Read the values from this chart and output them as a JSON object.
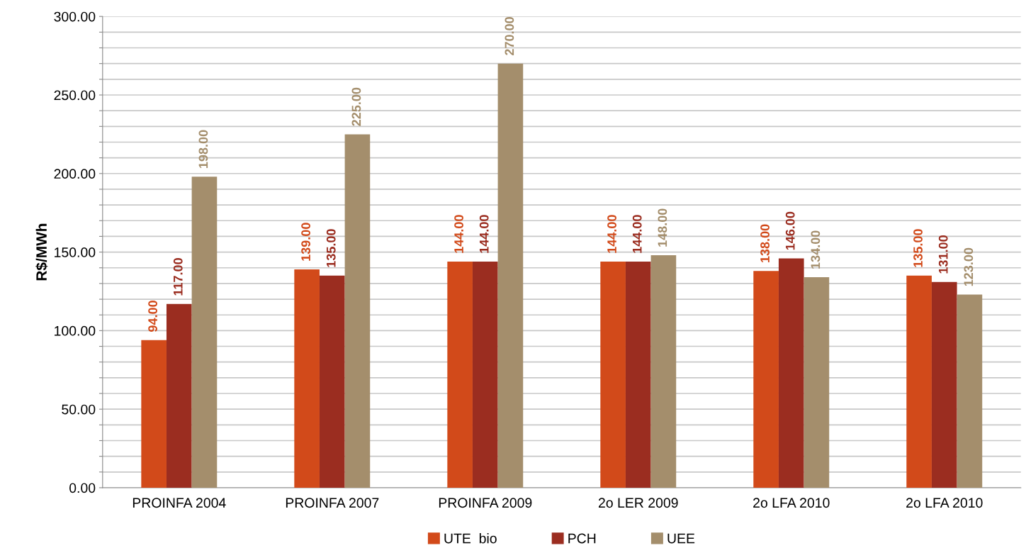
{
  "chart_data": {
    "type": "bar",
    "ylabel": "R$/MWh",
    "categories": [
      "PROINFA 2004",
      "PROINFA 2007",
      "PROINFA 2009",
      "2o LER 2009",
      "2o LFA 2010",
      "2o LFA 2010"
    ],
    "series": [
      {
        "name": "UTE  bio",
        "color": "#d24a1a",
        "values": [
          94,
          139,
          144,
          144,
          138,
          135
        ],
        "value_labels": [
          "94.00",
          "139.00",
          "144.00",
          "144.00",
          "138.00",
          "135.00"
        ]
      },
      {
        "name": "PCH",
        "color": "#9b2d20",
        "values": [
          117,
          135,
          144,
          144,
          146,
          131
        ],
        "value_labels": [
          "117.00",
          "135.00",
          "144.00",
          "144.00",
          "146.00",
          "131.00"
        ]
      },
      {
        "name": "UEE",
        "color": "#a48e6c",
        "values": [
          198,
          225,
          270,
          148,
          134,
          123
        ],
        "value_labels": [
          "198.00",
          "225.00",
          "270.00",
          "148.00",
          "134.00",
          "123.00"
        ]
      }
    ],
    "ylim": [
      0,
      300
    ],
    "yticks": [
      {
        "value": 0,
        "label": "0.00"
      },
      {
        "value": 10,
        "label": null
      },
      {
        "value": 20,
        "label": null
      },
      {
        "value": 30,
        "label": null
      },
      {
        "value": 40,
        "label": null
      },
      {
        "value": 50,
        "label": "50.00"
      },
      {
        "value": 60,
        "label": null
      },
      {
        "value": 70,
        "label": null
      },
      {
        "value": 80,
        "label": null
      },
      {
        "value": 90,
        "label": null
      },
      {
        "value": 100,
        "label": "100.00"
      },
      {
        "value": 110,
        "label": null
      },
      {
        "value": 120,
        "label": null
      },
      {
        "value": 130,
        "label": null
      },
      {
        "value": 140,
        "label": null
      },
      {
        "value": 150,
        "label": "150.00"
      },
      {
        "value": 160,
        "label": null
      },
      {
        "value": 170,
        "label": null
      },
      {
        "value": 180,
        "label": null
      },
      {
        "value": 190,
        "label": null
      },
      {
        "value": 200,
        "label": "200.00"
      },
      {
        "value": 210,
        "label": null
      },
      {
        "value": 220,
        "label": null
      },
      {
        "value": 230,
        "label": null
      },
      {
        "value": 240,
        "label": null
      },
      {
        "value": 250,
        "label": "250.00"
      },
      {
        "value": 260,
        "label": null
      },
      {
        "value": 270,
        "label": null
      },
      {
        "value": 280,
        "label": null
      },
      {
        "value": 290,
        "label": null
      },
      {
        "value": 300,
        "label": "300.00"
      }
    ],
    "grid": "y",
    "legend": "bottom"
  }
}
